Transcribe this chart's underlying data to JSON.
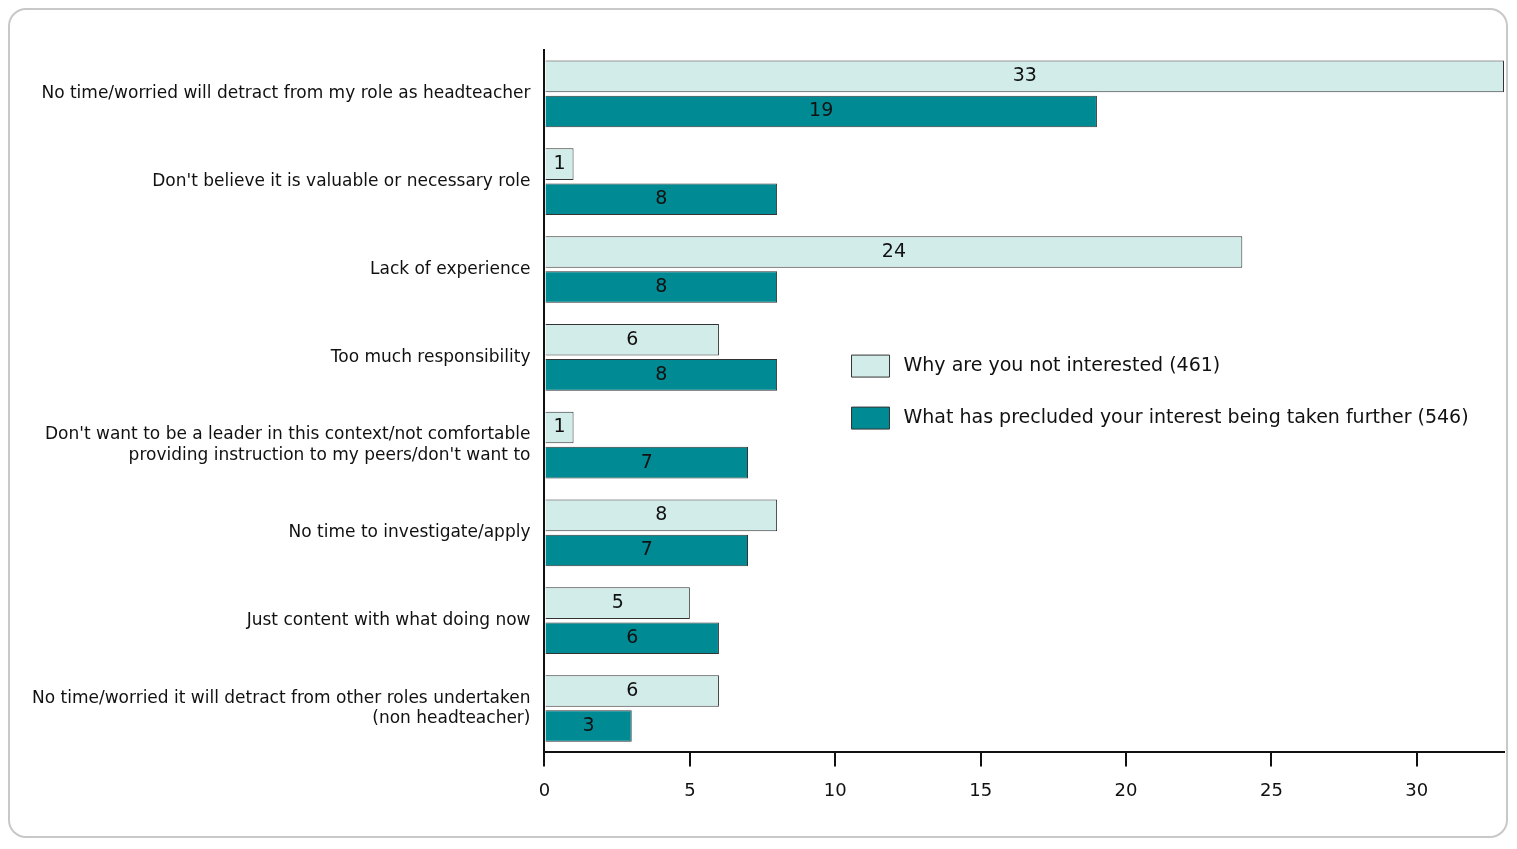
{
  "chart_data": {
    "type": "bar",
    "orientation": "horizontal",
    "categories": [
      "No time/worried will detract from my role as headteacher",
      "Don't believe it is valuable or necessary role",
      "Lack of experience",
      "Too much responsibility",
      "Don't want to be a leader in this context/not comfortable providing instruction to my peers/don't want to",
      "No time to investigate/apply",
      "Just content with what doing now",
      "No time/worried it will detract from other roles undertaken (non headteacher)"
    ],
    "series": [
      {
        "name": "Why are you not interested (461)",
        "color": "#d2ecea",
        "values": [
          33,
          1,
          24,
          6,
          1,
          8,
          5,
          6
        ]
      },
      {
        "name": "What has precluded your interest being taken further (546)",
        "color": "#008b94",
        "values": [
          19,
          8,
          8,
          8,
          7,
          7,
          6,
          3
        ]
      }
    ],
    "xlim": [
      0,
      33
    ],
    "xticks": [
      0,
      5,
      10,
      15,
      20,
      25,
      30
    ],
    "grid": false,
    "legend": "right",
    "data_labels": true
  }
}
